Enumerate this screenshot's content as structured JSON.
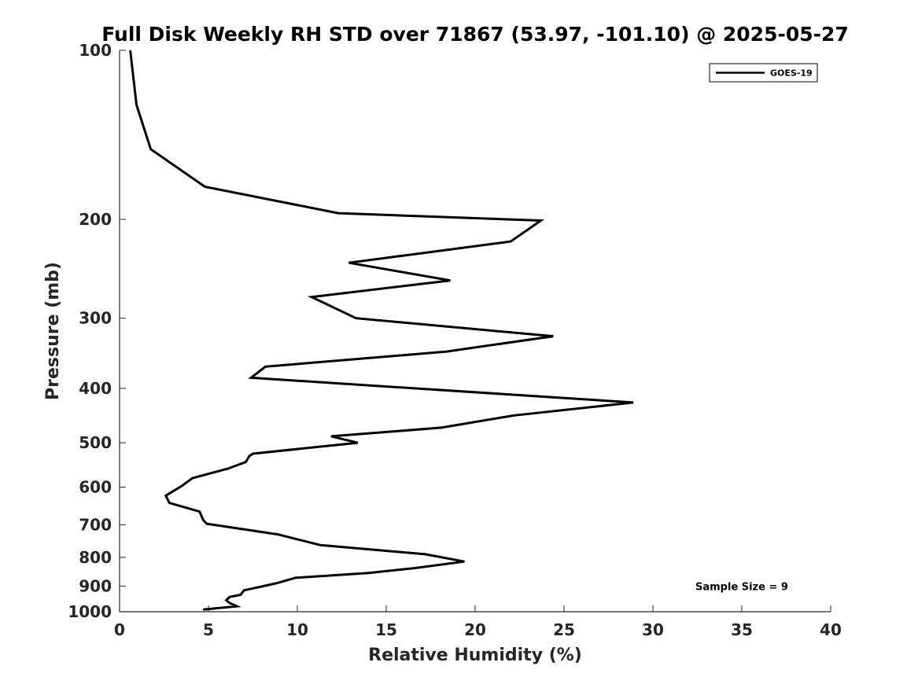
{
  "chart_data": {
    "type": "line",
    "title": "Full Disk Weekly RH STD over 71867 (53.97, -101.10) @ 2025-05-27",
    "xlabel": "Relative Humidity (%)",
    "ylabel": "Pressure (mb)",
    "xlim": [
      0,
      40
    ],
    "ylim": [
      100,
      1000
    ],
    "yscale": "log",
    "ydirection": "reverse",
    "xticks": [
      0,
      5,
      10,
      15,
      20,
      25,
      30,
      35,
      40
    ],
    "yticks": [
      100,
      200,
      300,
      400,
      500,
      600,
      700,
      800,
      900,
      1000
    ],
    "grid": false,
    "legend_position": "top-right",
    "series": [
      {
        "name": "GOES-19",
        "color": "#000000",
        "points": [
          [
            0.6,
            100
          ],
          [
            0.95,
            125
          ],
          [
            1.75,
            150
          ],
          [
            4.8,
            175
          ],
          [
            12.3,
            195
          ],
          [
            23.7,
            201
          ],
          [
            22.0,
            219
          ],
          [
            12.9,
            239
          ],
          [
            18.6,
            257
          ],
          [
            10.8,
            275
          ],
          [
            13.3,
            300
          ],
          [
            24.4,
            323
          ],
          [
            18.4,
            344
          ],
          [
            8.2,
            366
          ],
          [
            7.4,
            383
          ],
          [
            28.9,
            424
          ],
          [
            22.2,
            447
          ],
          [
            18.1,
            470
          ],
          [
            11.9,
            487
          ],
          [
            13.4,
            500
          ],
          [
            7.5,
            523
          ],
          [
            7.3,
            528
          ],
          [
            7.1,
            541
          ],
          [
            6.1,
            556
          ],
          [
            4.1,
            578
          ],
          [
            3.5,
            597
          ],
          [
            2.6,
            621
          ],
          [
            2.8,
            640
          ],
          [
            4.5,
            663
          ],
          [
            4.7,
            686
          ],
          [
            4.9,
            697
          ],
          [
            8.9,
            728
          ],
          [
            11.3,
            761
          ],
          [
            17.2,
            790
          ],
          [
            19.4,
            814
          ],
          [
            16.6,
            836
          ],
          [
            14.0,
            853
          ],
          [
            9.9,
            870
          ],
          [
            8.8,
            890
          ],
          [
            7.0,
            916
          ],
          [
            6.8,
            933
          ],
          [
            6.2,
            941
          ],
          [
            6.0,
            954
          ],
          [
            6.2,
            965
          ],
          [
            6.6,
            978
          ],
          [
            4.7,
            991
          ]
        ]
      }
    ],
    "annotations": [
      {
        "text": "Sample Size = 9",
        "x": 35,
        "p": 900
      }
    ]
  }
}
